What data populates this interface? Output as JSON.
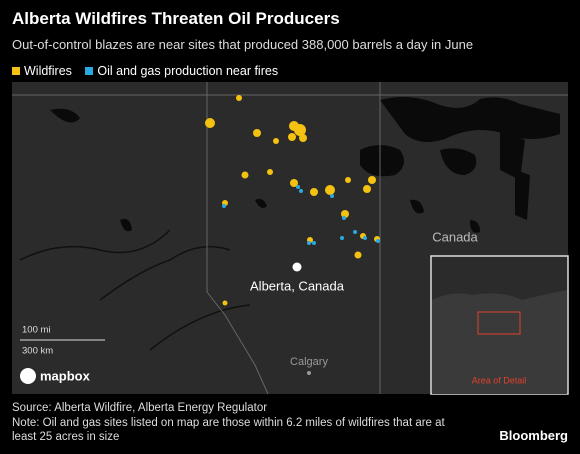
{
  "header": {
    "title": "Alberta Wildfires Threaten Oil Producers",
    "subtitle": "Out-of-control blazes are near sites that produced 388,000 barrels a day in June"
  },
  "legend": {
    "items": [
      "Wildfires",
      "Oil and gas production near fires"
    ]
  },
  "map": {
    "labels": {
      "country": "Canada",
      "province": "Alberta, Canada",
      "city": "Calgary"
    },
    "scale": [
      "100 mi",
      "300 km"
    ],
    "logo": "mapbox",
    "inset_label": "Area of Detail"
  },
  "footer": {
    "source": "Source: Alberta Wildfire, Alberta Energy Regulator",
    "note": "Note: Oil and gas sites listed on map are those within 6.2 miles of wildfires that are at least 25 acres in size",
    "brand": "Bloomberg"
  }
}
